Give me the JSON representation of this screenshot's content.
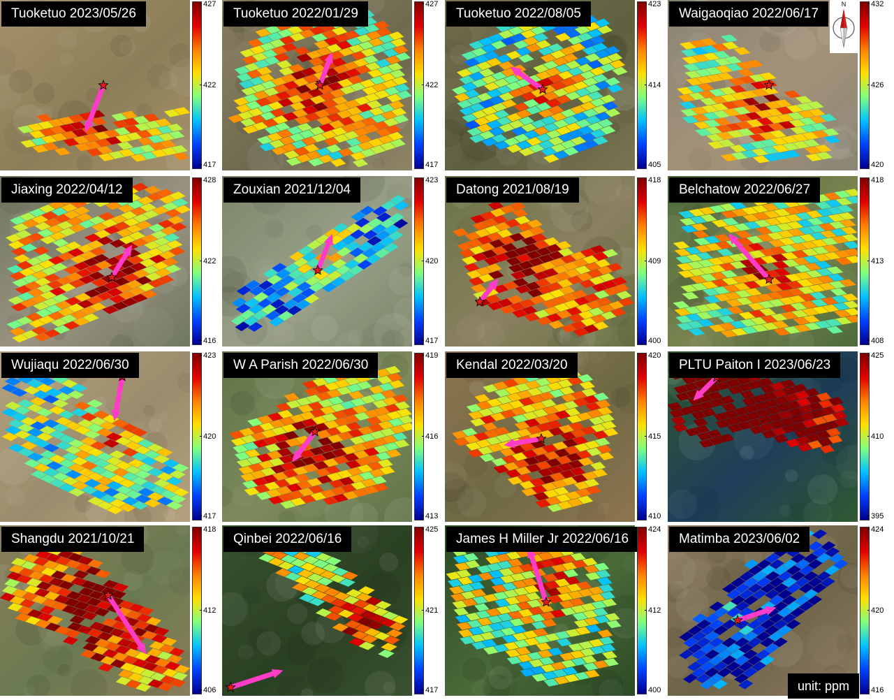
{
  "colorbar_gradient": [
    "#800000",
    "#e00000",
    "#ff8000",
    "#ffe000",
    "#80ff80",
    "#00c0ff",
    "#0040ff",
    "#000090"
  ],
  "colors": {
    "plume_arrow": "#ff3cc8",
    "source_star": "#e41a1c",
    "title_background": "#000000",
    "title_text": "#ffffff"
  },
  "icons": {
    "source_marker": "star-icon",
    "plume_direction": "arrow-icon",
    "north_arrow": "compass-icon"
  },
  "compass_label": "N",
  "unit_label": "unit: ppm",
  "panels": [
    {
      "title": "Tuoketuo 2023/05/26",
      "ticks": {
        "max": "427",
        "mid": "422",
        "min": "417"
      },
      "bg": "#a5926c",
      "alt": "#8c7e58"
    },
    {
      "title": "Tuoketuo 2022/01/29",
      "ticks": {
        "max": "427",
        "mid": "422",
        "min": "417"
      },
      "bg": "#8f8466",
      "alt": "#6f6a50"
    },
    {
      "title": "Tuoketuo 2022/08/05",
      "ticks": {
        "max": "423",
        "mid": "414",
        "min": "405"
      },
      "bg": "#7b7452",
      "alt": "#5e6040"
    },
    {
      "title": "Waigaoqiao 2022/06/17",
      "ticks": {
        "max": "432",
        "mid": "426",
        "min": "420"
      },
      "bg": "#8a8576",
      "alt": "#a49278"
    },
    {
      "title": "Jiaxing 2022/04/12",
      "ticks": {
        "max": "428",
        "mid": "422",
        "min": "416"
      },
      "bg": "#6f7860",
      "alt": "#9a9282"
    },
    {
      "title": "Zouxian 2021/12/04",
      "ticks": {
        "max": "423",
        "mid": "420",
        "min": "417"
      },
      "bg": "#7a866a",
      "alt": "#9aa088"
    },
    {
      "title": "Datong 2021/08/19",
      "ticks": {
        "max": "418",
        "mid": "409",
        "min": "400"
      },
      "bg": "#6a7445",
      "alt": "#8a8060"
    },
    {
      "title": "Belchatow 2022/06/27",
      "ticks": {
        "max": "418",
        "mid": "413",
        "min": "408"
      },
      "bg": "#4d6b3a",
      "alt": "#7a8450"
    },
    {
      "title": "Wujiaqu 2022/06/30",
      "ticks": {
        "max": "423",
        "mid": "420",
        "min": "417"
      },
      "bg": "#b4a27e",
      "alt": "#9a8c6c"
    },
    {
      "title": "W A Parish 2022/06/30",
      "ticks": {
        "max": "419",
        "mid": "416",
        "min": "413"
      },
      "bg": "#5f7448",
      "alt": "#7d8a5c"
    },
    {
      "title": "Kendal 2022/03/20",
      "ticks": {
        "max": "420",
        "mid": "415",
        "min": "410"
      },
      "bg": "#8e7450",
      "alt": "#6e6a44"
    },
    {
      "title": "PLTU Paiton I 2023/06/23",
      "ticks": {
        "max": "425",
        "mid": "410",
        "min": "395"
      },
      "bg": "#2e5a30",
      "alt": "#1e3e5a"
    },
    {
      "title": "Shangdu 2021/10/21",
      "ticks": {
        "max": "418",
        "mid": "412",
        "min": "406"
      },
      "bg": "#8a7e5a",
      "alt": "#6a7a50"
    },
    {
      "title": "Qinbei 2022/06/16",
      "ticks": {
        "max": "425",
        "mid": "421",
        "min": "417"
      },
      "bg": "#3a5230",
      "alt": "#2a4022"
    },
    {
      "title": "James H Miller Jr 2022/06/16",
      "ticks": {
        "max": "424",
        "mid": "412",
        "min": "400"
      },
      "bg": "#2c4a26",
      "alt": "#4a6a38"
    },
    {
      "title": "Matimba 2023/06/02",
      "ticks": {
        "max": "424",
        "mid": "420",
        "min": "416"
      },
      "bg": "#8a7a5e",
      "alt": "#6e6448"
    }
  ]
}
